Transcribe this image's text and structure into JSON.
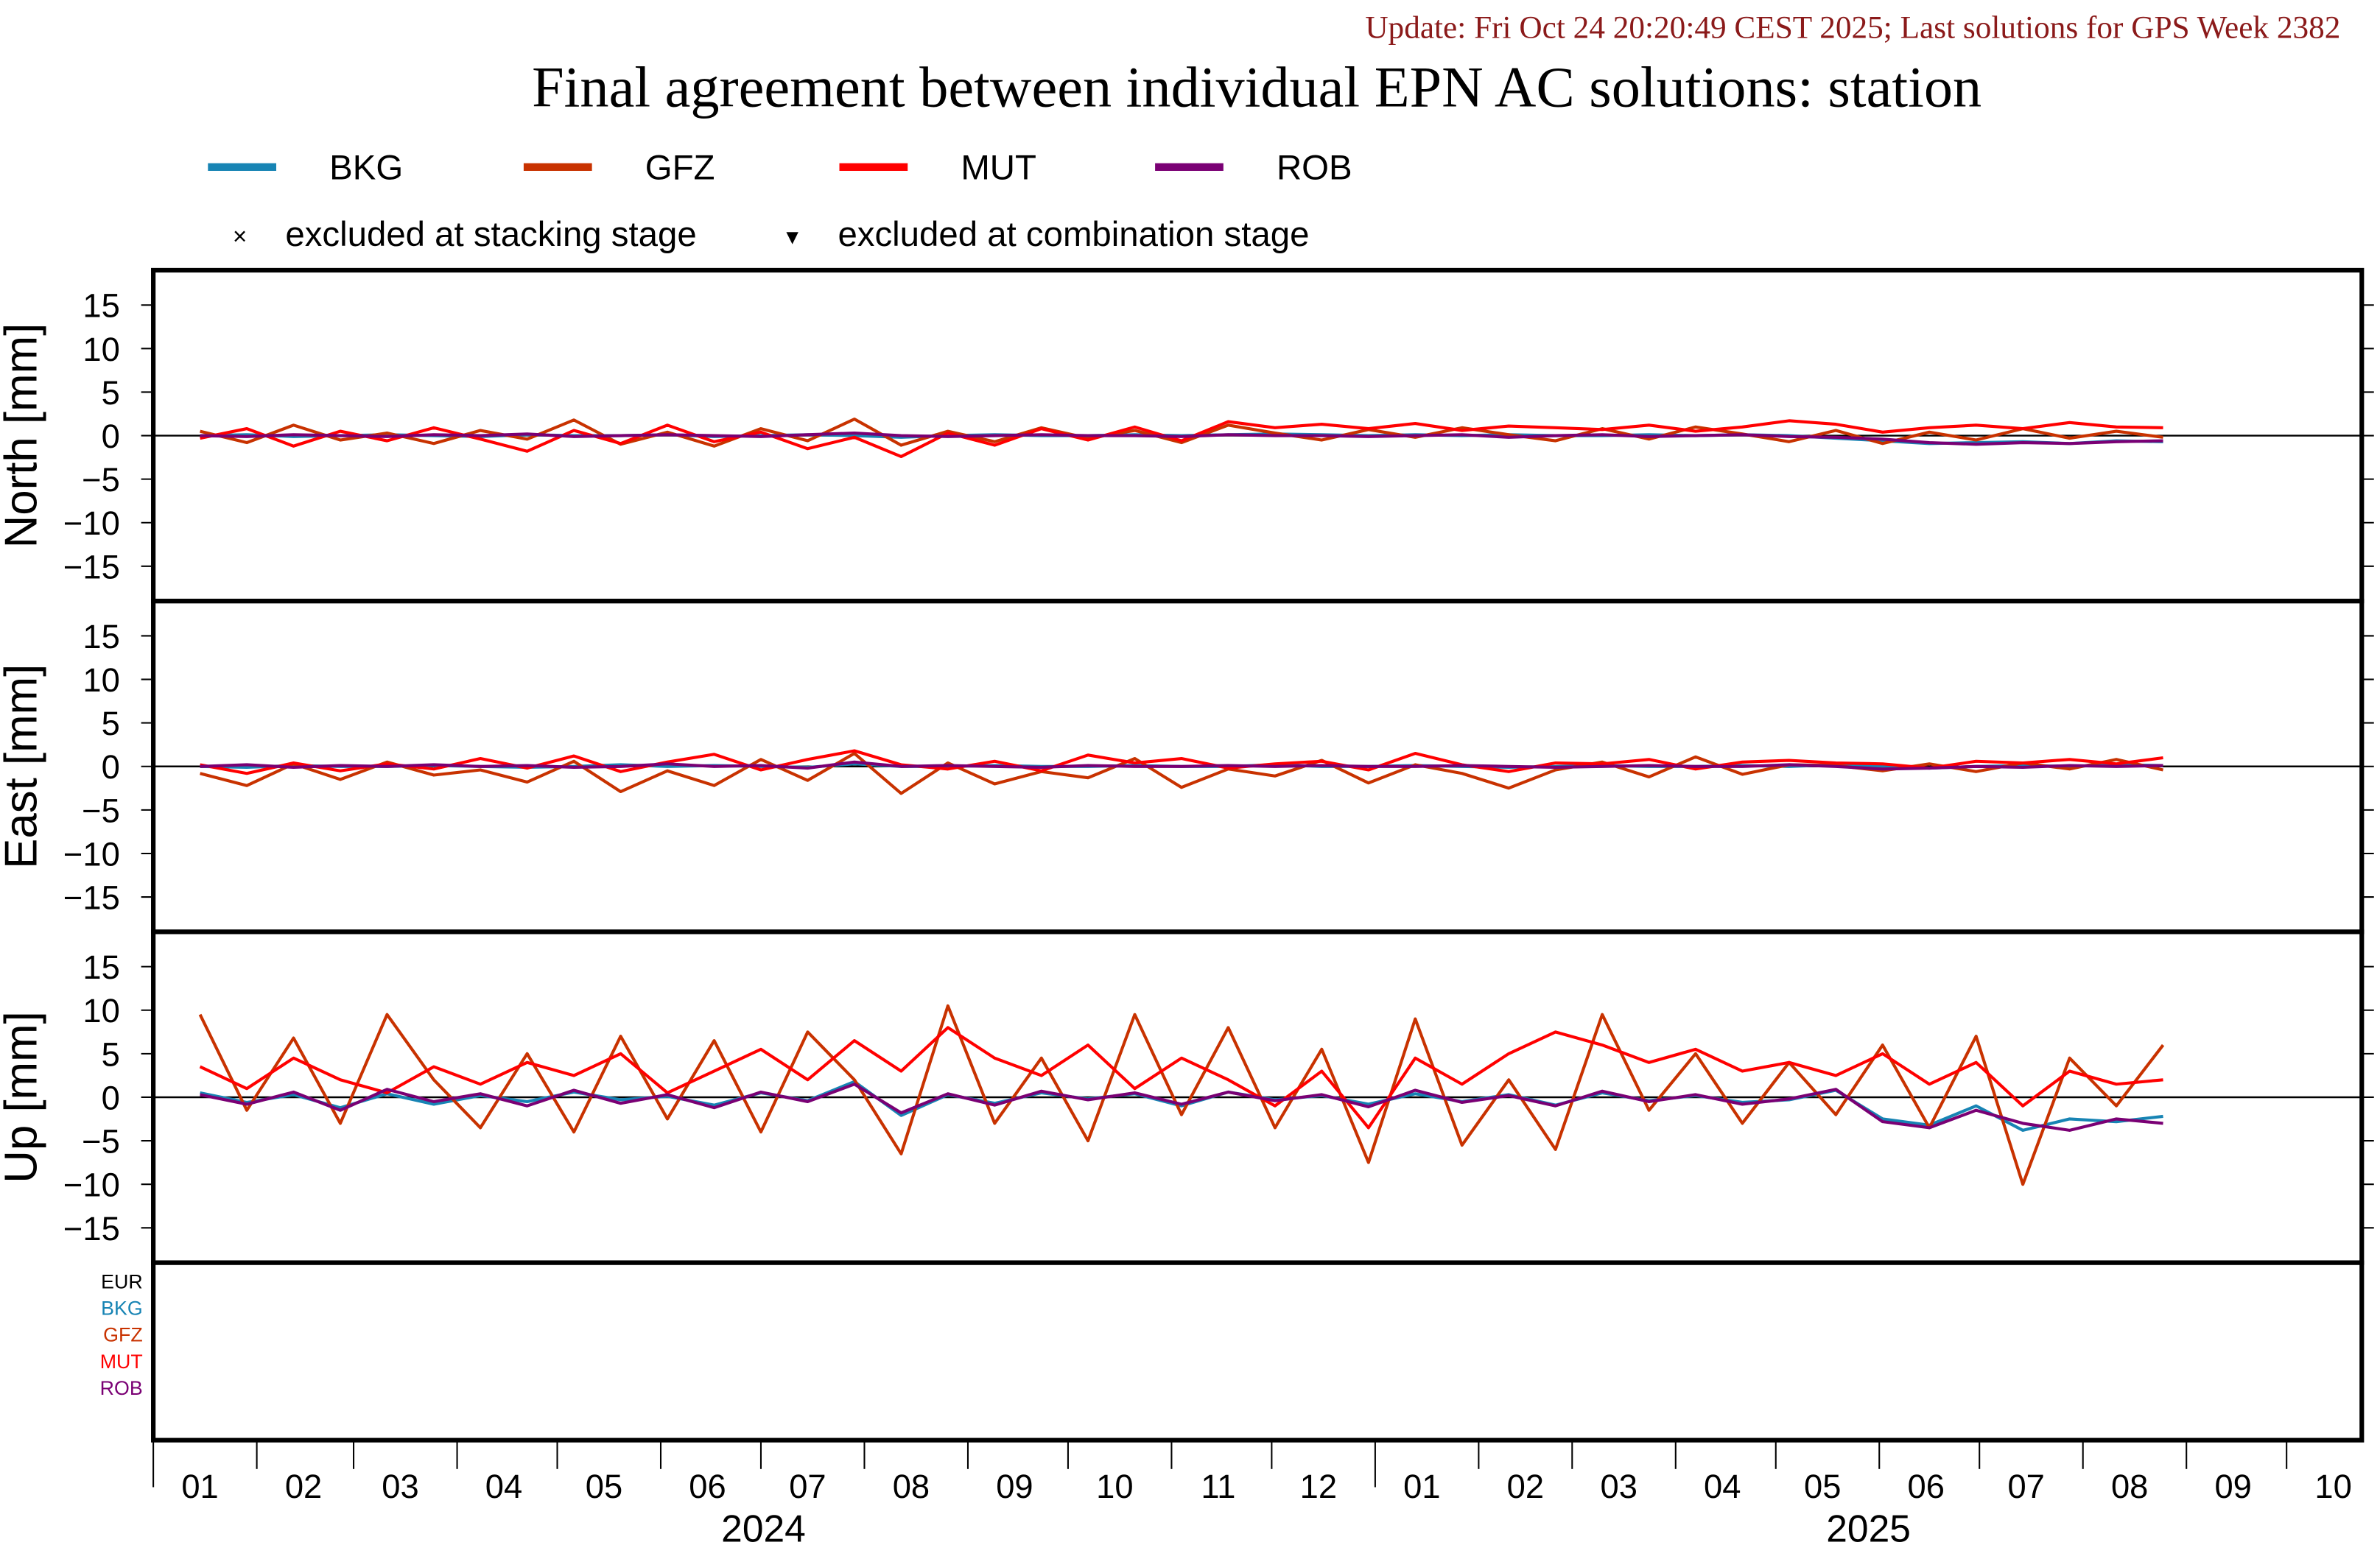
{
  "header": {
    "update": "Update: Fri Oct 24 20:20:49 CEST 2025; Last solutions for GPS Week 2382",
    "title": "Final agreement between individual EPN AC solutions: station"
  },
  "legend": {
    "series": [
      {
        "name": "BKG",
        "color": "#1784b4"
      },
      {
        "name": "GFZ",
        "color": "#c83200"
      },
      {
        "name": "MUT",
        "color": "#ff0000"
      },
      {
        "name": "ROB",
        "color": "#7a0074"
      }
    ],
    "markers": [
      {
        "symbol": "×",
        "label": "excluded at stacking stage"
      },
      {
        "symbol": "▾",
        "label": "excluded at combination stage"
      }
    ]
  },
  "bottom_labels": [
    {
      "text": "EUR",
      "color": "#000000"
    },
    {
      "text": "BKG",
      "color": "#1784b4"
    },
    {
      "text": "GFZ",
      "color": "#c83200"
    },
    {
      "text": "MUT",
      "color": "#ff0000"
    },
    {
      "text": "ROB",
      "color": "#7a0074"
    }
  ],
  "chart_data": {
    "type": "line",
    "grid": false,
    "x_axis": {
      "type": "date",
      "range": [
        "2024-01-01",
        "2025-10-31"
      ],
      "month_labels": [
        "01",
        "02",
        "03",
        "04",
        "05",
        "06",
        "07",
        "08",
        "09",
        "10",
        "11",
        "12",
        "01",
        "02",
        "03",
        "04",
        "05",
        "06",
        "07",
        "08",
        "09",
        "10"
      ],
      "year_labels": [
        "2024",
        "2025"
      ]
    },
    "x": [
      "2024-01-15",
      "2024-01-29",
      "2024-02-12",
      "2024-02-26",
      "2024-03-11",
      "2024-03-25",
      "2024-04-08",
      "2024-04-22",
      "2024-05-06",
      "2024-05-20",
      "2024-06-03",
      "2024-06-17",
      "2024-07-01",
      "2024-07-15",
      "2024-07-29",
      "2024-08-12",
      "2024-08-26",
      "2024-09-09",
      "2024-09-23",
      "2024-10-07",
      "2024-10-21",
      "2024-11-04",
      "2024-11-18",
      "2024-12-02",
      "2024-12-16",
      "2024-12-30",
      "2025-01-13",
      "2025-01-27",
      "2025-02-10",
      "2025-02-24",
      "2025-03-10",
      "2025-03-24",
      "2025-04-07",
      "2025-04-21",
      "2025-05-05",
      "2025-05-19",
      "2025-06-02",
      "2025-06-16",
      "2025-06-30",
      "2025-07-14",
      "2025-07-28",
      "2025-08-11",
      "2025-08-25"
    ],
    "panels": [
      {
        "ylabel": "North [mm]",
        "ylim": [
          -19,
          19
        ],
        "yticks": [
          15,
          10,
          5,
          0,
          -5,
          -10,
          -15
        ],
        "series": [
          {
            "name": "BKG",
            "values": [
              0,
              0.1,
              -0.1,
              0,
              0.1,
              0,
              -0.1,
              0.1,
              0,
              0,
              0.1,
              -0.1,
              0,
              0.1,
              0,
              -0.2,
              0,
              0.1,
              0,
              0,
              0.1,
              0,
              0.1,
              0.2,
              0.1,
              0,
              0.1,
              0,
              0.1,
              0,
              0,
              0.1,
              0,
              0.1,
              0,
              -0.3,
              -0.6,
              -0.9,
              -0.8,
              -0.7,
              -0.9,
              -0.6,
              -0.7
            ]
          },
          {
            "name": "GFZ",
            "values": [
              0.5,
              -0.8,
              1.2,
              -0.5,
              0.3,
              -0.9,
              0.6,
              -0.4,
              1.8,
              -1.0,
              0.4,
              -1.2,
              0.8,
              -0.6,
              1.9,
              -1.1,
              0.5,
              -0.7,
              0.9,
              -0.3,
              0.6,
              -0.8,
              1.2,
              0.3,
              -0.5,
              0.7,
              -0.2,
              0.9,
              0.1,
              -0.6,
              0.8,
              -0.4,
              1.0,
              0.2,
              -0.7,
              0.6,
              -0.9,
              0.4,
              -0.5,
              0.8,
              -0.3,
              0.5,
              -0.2
            ]
          },
          {
            "name": "MUT",
            "values": [
              -0.3,
              0.8,
              -1.2,
              0.5,
              -0.6,
              0.9,
              -0.4,
              -1.8,
              0.6,
              -0.9,
              1.2,
              -0.7,
              0.4,
              -1.5,
              -0.2,
              -2.4,
              0.3,
              -1.1,
              0.8,
              -0.5,
              1.0,
              -0.6,
              1.6,
              0.9,
              1.3,
              0.8,
              1.4,
              0.6,
              1.1,
              0.9,
              0.7,
              1.2,
              0.5,
              1.0,
              1.7,
              1.3,
              0.4,
              0.9,
              1.2,
              0.8,
              1.5,
              1.0,
              0.9
            ]
          },
          {
            "name": "ROB",
            "values": [
              0,
              -0.1,
              0.1,
              0,
              -0.1,
              0.1,
              0,
              0.2,
              -0.1,
              0,
              0.1,
              0,
              -0.1,
              0.1,
              0.3,
              0,
              -0.1,
              0,
              0.1,
              0,
              0,
              -0.1,
              0.1,
              0,
              0,
              -0.1,
              0,
              0.1,
              -0.2,
              0,
              0.1,
              -0.1,
              0,
              0.1,
              -0.1,
              -0.2,
              -0.4,
              -0.8,
              -1.0,
              -0.8,
              -0.9,
              -0.7,
              -0.6
            ]
          }
        ]
      },
      {
        "ylabel": "East [mm]",
        "ylim": [
          -19,
          19
        ],
        "yticks": [
          15,
          10,
          5,
          0,
          -5,
          -10,
          -15
        ],
        "series": [
          {
            "name": "BKG",
            "values": [
              0,
              -0.1,
              0.1,
              0,
              0,
              0.1,
              0,
              -0.1,
              0,
              0.2,
              0,
              0.1,
              0,
              -0.1,
              0.3,
              0,
              0,
              0.1,
              0,
              0,
              0.1,
              0,
              0,
              0.2,
              0,
              0,
              0.1,
              0,
              -0.1,
              0,
              0.1,
              0,
              0,
              0.1,
              0,
              0.2,
              0,
              -0.2,
              0,
              0.1,
              0,
              0.2,
              0.1
            ]
          },
          {
            "name": "GFZ",
            "values": [
              -0.8,
              -2.2,
              0.3,
              -1.5,
              0.5,
              -1.0,
              -0.4,
              -1.8,
              0.6,
              -2.9,
              -0.5,
              -2.2,
              0.8,
              -1.6,
              1.5,
              -3.1,
              0.4,
              -2.0,
              -0.6,
              -1.3,
              0.9,
              -2.4,
              -0.3,
              -1.1,
              0.7,
              -1.9,
              0.2,
              -0.8,
              -2.5,
              -0.4,
              0.5,
              -1.2,
              1.1,
              -0.9,
              0.2,
              0.1,
              -0.5,
              0.3,
              -0.6,
              0.4,
              -0.3,
              0.8,
              -0.4
            ]
          },
          {
            "name": "MUT",
            "values": [
              0.2,
              -0.8,
              0.4,
              -0.5,
              0.3,
              -0.3,
              0.9,
              -0.2,
              1.2,
              -0.6,
              0.5,
              1.4,
              -0.4,
              0.8,
              1.8,
              0.2,
              -0.3,
              0.6,
              -0.5,
              1.3,
              0.4,
              0.9,
              -0.2,
              0.3,
              0.6,
              -0.4,
              1.5,
              0.2,
              -0.6,
              0.4,
              0.3,
              0.8,
              -0.3,
              0.5,
              0.7,
              0.4,
              0.3,
              -0.2,
              0.6,
              0.4,
              0.8,
              0.3,
              1.0
            ]
          },
          {
            "name": "ROB",
            "values": [
              0,
              0.2,
              -0.1,
              0.1,
              0,
              0.2,
              0,
              0.1,
              -0.1,
              0,
              0.3,
              0,
              0.1,
              -0.2,
              0.5,
              0,
              0.1,
              0,
              -0.1,
              0.1,
              0,
              0,
              0.1,
              0,
              0.1,
              0,
              0,
              0.1,
              0,
              -0.1,
              0,
              0.1,
              0,
              0,
              0.2,
              0,
              -0.3,
              -0.2,
              0,
              -0.1,
              0.1,
              0,
              0.1
            ]
          }
        ]
      },
      {
        "ylabel": "Up [mm]",
        "ylim": [
          -19,
          19
        ],
        "yticks": [
          15,
          10,
          5,
          0,
          -5,
          -10,
          -15
        ],
        "series": [
          {
            "name": "BKG",
            "values": [
              0.5,
              -0.6,
              0.3,
              -1.2,
              0.4,
              -0.8,
              0.2,
              -0.5,
              0.6,
              -0.3,
              0.1,
              -0.9,
              0.5,
              -0.4,
              1.8,
              -2.1,
              0.3,
              -0.7,
              0.5,
              -0.2,
              0.4,
              -1.0,
              0.6,
              -0.3,
              0.2,
              -0.8,
              0.4,
              -0.5,
              0.3,
              -0.9,
              0.5,
              -0.4,
              0.2,
              -0.6,
              -0.3,
              0.8,
              -2.5,
              -3.2,
              -1.0,
              -3.8,
              -2.5,
              -2.8,
              -2.2
            ]
          },
          {
            "name": "GFZ",
            "values": [
              9.5,
              -1.5,
              6.8,
              -3.0,
              9.5,
              2.0,
              -3.5,
              5.0,
              -4.0,
              7.0,
              -2.5,
              6.5,
              -4.0,
              7.5,
              2.0,
              -6.5,
              10.5,
              -3.0,
              4.5,
              -5.0,
              9.5,
              -2.0,
              8.0,
              -3.5,
              5.5,
              -7.5,
              9.0,
              -5.5,
              2.0,
              -6.0,
              9.5,
              -1.5,
              5.0,
              -3.0,
              4.0,
              -2.0,
              6.0,
              -3.5,
              7.0,
              -10.0,
              4.5,
              -1.0,
              6.0
            ]
          },
          {
            "name": "MUT",
            "values": [
              3.5,
              1.0,
              4.5,
              2.0,
              0.5,
              3.5,
              1.5,
              4.0,
              2.5,
              5.0,
              0.5,
              3.0,
              5.5,
              2.0,
              6.5,
              3.0,
              8.0,
              4.5,
              2.5,
              6.0,
              1.0,
              4.5,
              2.0,
              -1.0,
              3.0,
              -3.5,
              4.5,
              1.5,
              5.0,
              7.5,
              6.0,
              4.0,
              5.5,
              3.0,
              4.0,
              2.5,
              5.0,
              1.5,
              4.0,
              -1.0,
              3.0,
              1.5,
              2.0
            ]
          },
          {
            "name": "ROB",
            "values": [
              0.3,
              -0.8,
              0.6,
              -1.5,
              0.9,
              -0.5,
              0.4,
              -1.0,
              0.8,
              -0.7,
              0.3,
              -1.2,
              0.6,
              -0.5,
              1.5,
              -1.8,
              0.4,
              -0.9,
              0.7,
              -0.3,
              0.5,
              -0.8,
              0.6,
              -0.4,
              0.3,
              -1.1,
              0.8,
              -0.6,
              0.2,
              -1.0,
              0.7,
              -0.5,
              0.3,
              -0.8,
              -0.2,
              0.9,
              -2.8,
              -3.5,
              -1.5,
              -3.0,
              -3.8,
              -2.5,
              -3.0
            ]
          }
        ]
      }
    ]
  }
}
